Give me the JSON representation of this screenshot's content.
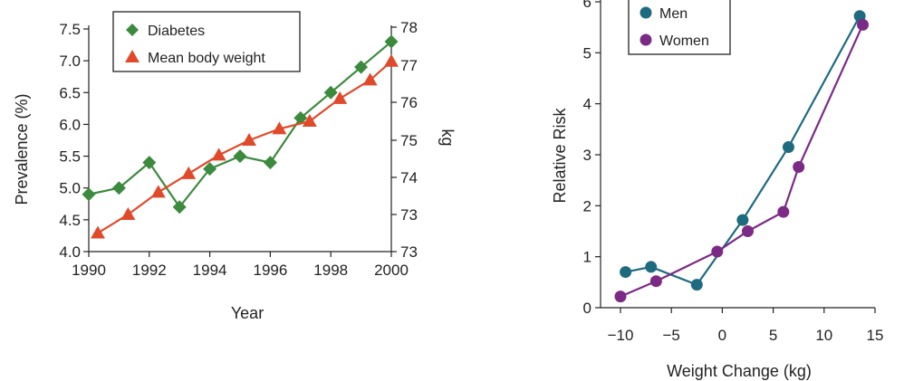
{
  "chart_data": [
    {
      "type": "line",
      "xlabel": "Year",
      "ylabel_left": "Prevalence (%)",
      "ylabel_right": "kg",
      "xlim": [
        1990,
        2000
      ],
      "ylim_left": [
        4.0,
        7.5
      ],
      "ylim_right": [
        73,
        78
      ],
      "x_ticks": [
        1990,
        1992,
        1994,
        1996,
        1998,
        2000
      ],
      "y_ticks_left": [
        4.0,
        4.5,
        5.0,
        5.5,
        6.0,
        6.5,
        7.0,
        7.5
      ],
      "y_ticks_right_labels": [
        "73",
        "73",
        "74",
        "75",
        "76",
        "77",
        "78"
      ],
      "legend_position": "top-left",
      "series": [
        {
          "name": "Diabetes",
          "axis": "left",
          "marker": "diamond",
          "color": "#3b8a3e",
          "x": [
            1990,
            1991,
            1992,
            1993,
            1994,
            1995,
            1996,
            1997,
            1998,
            1999,
            2000
          ],
          "values": [
            4.9,
            5.0,
            5.4,
            4.7,
            5.3,
            5.5,
            5.4,
            6.1,
            6.5,
            6.9,
            7.3
          ]
        },
        {
          "name": "Mean body weight",
          "axis": "right",
          "marker": "triangle",
          "color": "#e04a2b",
          "x": [
            1990.3,
            1991.3,
            1992.3,
            1993.3,
            1994.3,
            1995.3,
            1996.3,
            1997.3,
            1998.3,
            1999.3,
            2000
          ],
          "values": [
            72.5,
            73.0,
            73.6,
            74.1,
            74.6,
            75.0,
            75.3,
            75.5,
            76.1,
            76.6,
            77.1
          ]
        }
      ]
    },
    {
      "type": "line",
      "xlabel": "Weight Change (kg)",
      "ylabel": "Relative Risk",
      "xlim": [
        -11,
        15
      ],
      "ylim": [
        0,
        6
      ],
      "x_ticks": [
        -10,
        -5,
        0,
        5,
        10,
        15
      ],
      "x_tick_labels": [
        "−10",
        "−5",
        "0",
        "5",
        "10",
        "15"
      ],
      "y_ticks": [
        0,
        1,
        2,
        3,
        4,
        5,
        6
      ],
      "legend_position": "top-left",
      "series": [
        {
          "name": "Men",
          "marker": "circle",
          "color": "#1e6b80",
          "x": [
            -9.5,
            -7.0,
            -2.5,
            2.0,
            6.5,
            13.5
          ],
          "values": [
            0.7,
            0.8,
            0.45,
            1.72,
            3.15,
            5.72
          ]
        },
        {
          "name": "Women",
          "marker": "circle",
          "color": "#7b2a86",
          "x": [
            -10.0,
            -6.5,
            -0.5,
            2.5,
            6.0,
            7.5,
            13.8
          ],
          "values": [
            0.22,
            0.52,
            1.1,
            1.5,
            1.88,
            2.76,
            5.55
          ]
        }
      ]
    }
  ]
}
